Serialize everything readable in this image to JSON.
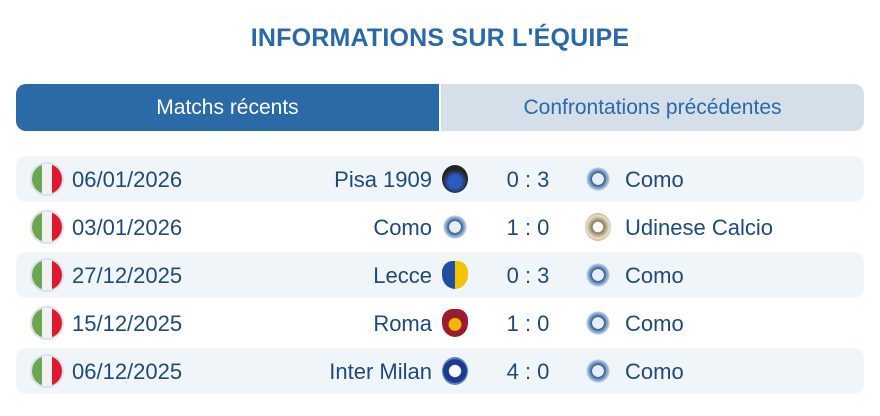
{
  "title": "INFORMATIONS SUR L'ÉQUIPE",
  "tabs": [
    {
      "label": "Matchs récents",
      "active": true
    },
    {
      "label": "Confrontations précédentes",
      "active": false
    }
  ],
  "colors": {
    "accent": "#2a6aa6",
    "tab_inactive": "#d5dfe9",
    "row_alt": "#f0f5fa",
    "text": "#1f4a78"
  },
  "matches": [
    {
      "country_flag": "italy-flag",
      "date": "06/01/2026",
      "home": "Pisa 1909",
      "home_logo": "pisa-logo",
      "score": "0 : 3",
      "away": "Como",
      "away_logo": "como-logo"
    },
    {
      "country_flag": "italy-flag",
      "date": "03/01/2026",
      "home": "Como",
      "home_logo": "como-logo",
      "score": "1 : 0",
      "away": "Udinese Calcio",
      "away_logo": "udinese-logo"
    },
    {
      "country_flag": "italy-flag",
      "date": "27/12/2025",
      "home": "Lecce",
      "home_logo": "lecce-logo",
      "score": "0 : 3",
      "away": "Como",
      "away_logo": "como-logo"
    },
    {
      "country_flag": "italy-flag",
      "date": "15/12/2025",
      "home": "Roma",
      "home_logo": "roma-logo",
      "score": "1 : 0",
      "away": "Como",
      "away_logo": "como-logo"
    },
    {
      "country_flag": "italy-flag",
      "date": "06/12/2025",
      "home": "Inter Milan",
      "home_logo": "inter-logo",
      "score": "4 : 0",
      "away": "Como",
      "away_logo": "como-logo"
    }
  ]
}
